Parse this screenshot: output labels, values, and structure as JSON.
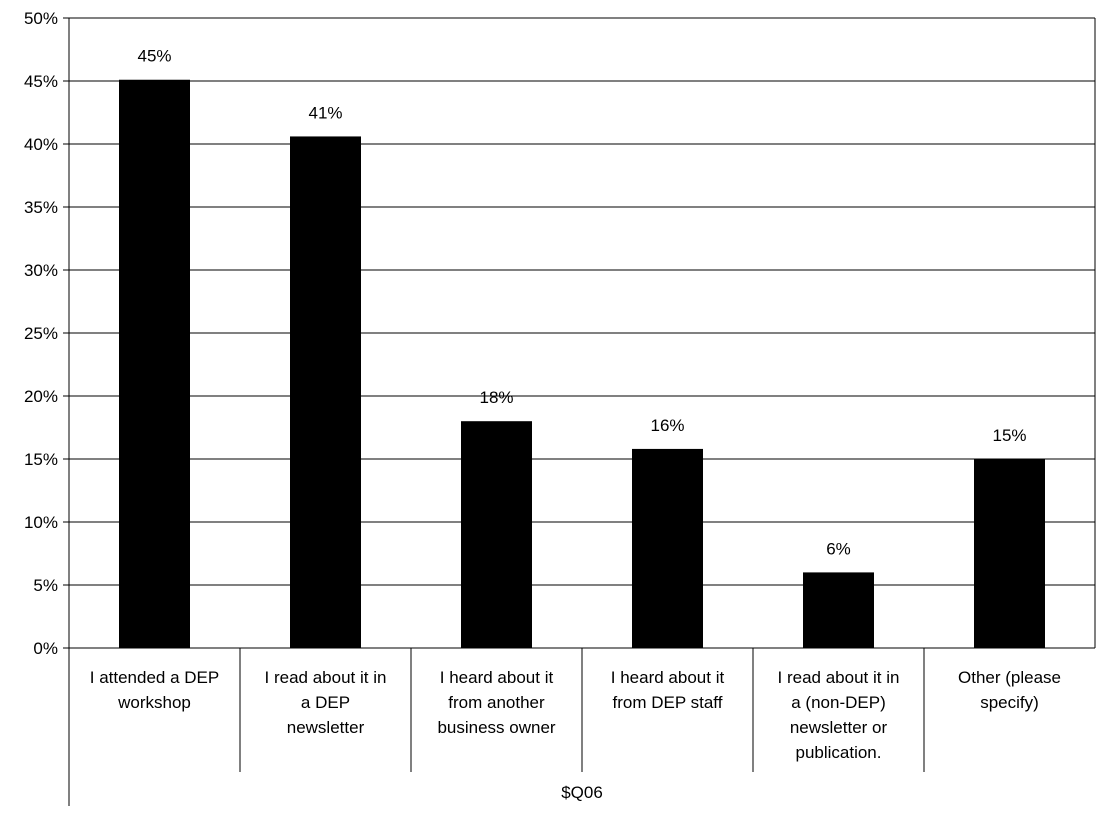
{
  "chart_data": {
    "type": "bar",
    "categories": [
      "I attended a DEP workshop",
      "I read about it in a DEP newsletter",
      "I heard about it from another business owner",
      "I heard about it from DEP staff",
      "I read about it in a (non-DEP) newsletter or publication.",
      "Other (please specify)"
    ],
    "category_lines": [
      [
        "I attended a DEP",
        "workshop"
      ],
      [
        "I read about it in",
        "a DEP",
        "newsletter"
      ],
      [
        "I heard about it",
        "from another",
        "business owner"
      ],
      [
        "I heard about it",
        "from DEP staff"
      ],
      [
        "I read about it in",
        "a (non-DEP)",
        "newsletter or",
        "publication."
      ],
      [
        "Other (please",
        "specify)"
      ]
    ],
    "values": [
      45.1,
      40.6,
      18.0,
      15.8,
      6.0,
      15.0
    ],
    "data_labels": [
      "45%",
      "41%",
      "18%",
      "16%",
      "6%",
      "15%"
    ],
    "ylim": [
      0,
      50
    ],
    "yticks": [
      0,
      5,
      10,
      15,
      20,
      25,
      30,
      35,
      40,
      45,
      50
    ],
    "ytick_labels": [
      "0%",
      "5%",
      "10%",
      "15%",
      "20%",
      "25%",
      "30%",
      "35%",
      "40%",
      "45%",
      "50%"
    ],
    "xlabel": "$Q06",
    "ylabel": "",
    "grid": true,
    "bar_color": "#000000",
    "grid_color": "#000000"
  }
}
